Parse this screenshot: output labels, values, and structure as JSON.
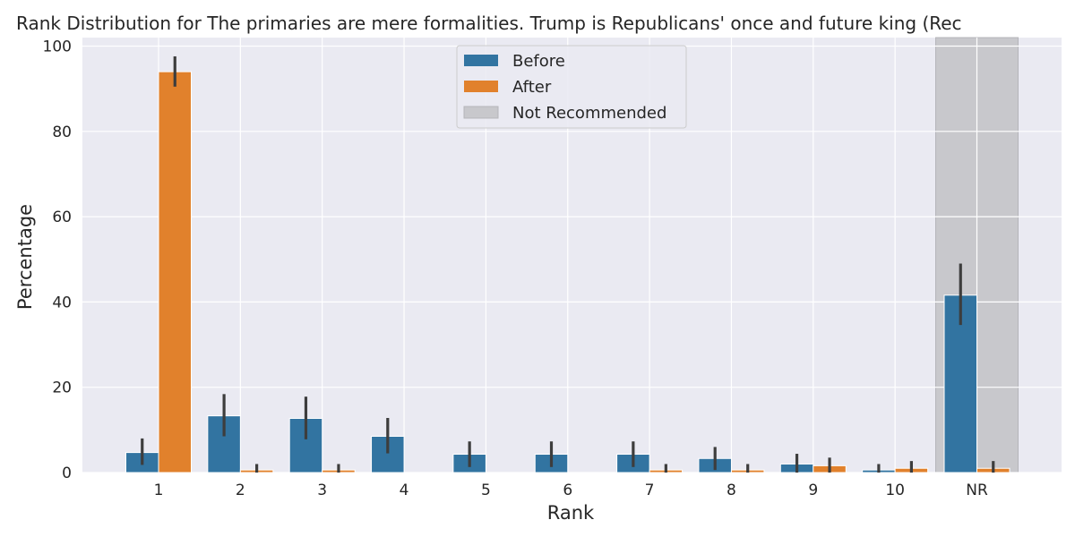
{
  "chart_data": {
    "type": "bar",
    "title": "Rank Distribution for The primaries are mere formalities. Trump is Republicans' once and future king (Rec",
    "xlabel": "Rank",
    "ylabel": "Percentage",
    "categories": [
      "1",
      "2",
      "3",
      "4",
      "5",
      "6",
      "7",
      "8",
      "9",
      "10",
      "NR"
    ],
    "ylim": [
      0,
      102
    ],
    "yticks": [
      0,
      20,
      40,
      60,
      80,
      100
    ],
    "grid": true,
    "legend_position": "top-center",
    "series": [
      {
        "name": "Before",
        "color": "#3274a1",
        "values": [
          4.7,
          13.3,
          12.7,
          8.5,
          4.3,
          4.3,
          4.3,
          3.3,
          2.0,
          0.6,
          41.6
        ],
        "error_low": [
          1.8,
          8.5,
          7.8,
          4.5,
          1.3,
          1.3,
          1.3,
          0.6,
          0.0,
          0.0,
          34.6
        ],
        "error_high": [
          8.0,
          18.4,
          17.8,
          12.8,
          7.3,
          7.3,
          7.3,
          6.0,
          4.4,
          2.0,
          49.0
        ]
      },
      {
        "name": "After",
        "color": "#e1812c",
        "values": [
          94.0,
          0.6,
          0.6,
          0.0,
          0.0,
          0.0,
          0.6,
          0.6,
          1.6,
          1.0,
          1.0
        ],
        "error_low": [
          90.5,
          0.0,
          0.0,
          0.0,
          0.0,
          0.0,
          0.0,
          0.0,
          0.0,
          0.0,
          0.0
        ],
        "error_high": [
          97.6,
          2.0,
          2.0,
          0.0,
          0.0,
          0.0,
          2.0,
          2.0,
          3.5,
          2.7,
          2.7
        ]
      }
    ],
    "highlight": {
      "label": "Not Recommended",
      "category": "NR",
      "color": "#c8c8cc"
    }
  }
}
